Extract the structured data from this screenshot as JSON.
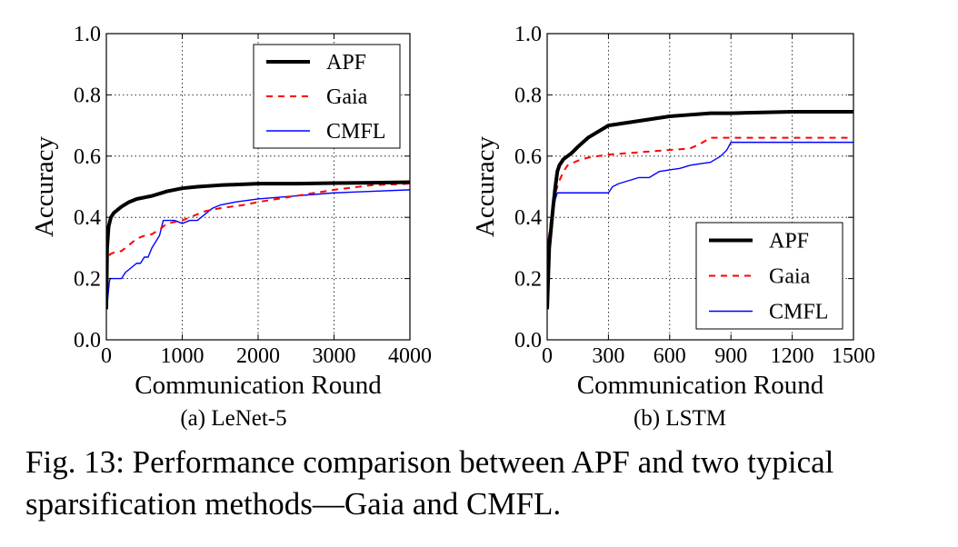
{
  "figure": {
    "caption": "Fig. 13: Performance comparison between APF and two typical sparsification methods—Gaia and CMFL."
  },
  "colors": {
    "APF": "#000000",
    "Gaia": "#ff0000",
    "CMFL": "#0000ff"
  },
  "chart_data": [
    {
      "type": "line",
      "panel_label": "(a) LeNet-5",
      "xlabel": "Communication Round",
      "ylabel": "Accuracy",
      "xlim": [
        0,
        4000
      ],
      "ylim": [
        0.0,
        1.0
      ],
      "xticks": [
        0,
        1000,
        2000,
        3000,
        4000
      ],
      "xtick_labels": [
        "0",
        "1000",
        "2000",
        "3000",
        "4000"
      ],
      "yticks": [
        0.0,
        0.2,
        0.4,
        0.6,
        0.8,
        1.0
      ],
      "ytick_labels": [
        "0.0",
        "0.2",
        "0.4",
        "0.6",
        "0.8",
        "1.0"
      ],
      "grid": true,
      "legend_position": "top-right",
      "series": [
        {
          "name": "APF",
          "style": "solid-thick",
          "x": [
            0,
            10,
            30,
            60,
            100,
            150,
            200,
            300,
            400,
            500,
            600,
            800,
            1000,
            1200,
            1500,
            2000,
            2500,
            3000,
            3500,
            4000
          ],
          "y": [
            0.1,
            0.3,
            0.37,
            0.4,
            0.415,
            0.425,
            0.435,
            0.45,
            0.46,
            0.465,
            0.47,
            0.485,
            0.495,
            0.5,
            0.505,
            0.51,
            0.51,
            0.512,
            0.513,
            0.515
          ]
        },
        {
          "name": "Gaia",
          "style": "dashed",
          "x": [
            0,
            20,
            50,
            100,
            200,
            250,
            300,
            400,
            500,
            600,
            700,
            800,
            900,
            1000,
            1200,
            1300,
            1500,
            1800,
            2000,
            2500,
            3000,
            3500,
            4000
          ],
          "y": [
            0.16,
            0.26,
            0.28,
            0.285,
            0.29,
            0.3,
            0.31,
            0.33,
            0.34,
            0.345,
            0.36,
            0.38,
            0.385,
            0.39,
            0.41,
            0.42,
            0.43,
            0.44,
            0.45,
            0.47,
            0.49,
            0.505,
            0.51
          ]
        },
        {
          "name": "CMFL",
          "style": "solid-thin",
          "x": [
            0,
            20,
            40,
            50,
            150,
            200,
            250,
            400,
            450,
            500,
            550,
            600,
            700,
            750,
            800,
            900,
            1000,
            1100,
            1200,
            1300,
            1400,
            1500,
            1700,
            2000,
            2500,
            3000,
            3500,
            4000
          ],
          "y": [
            0.1,
            0.14,
            0.19,
            0.2,
            0.2,
            0.2,
            0.22,
            0.25,
            0.25,
            0.27,
            0.27,
            0.3,
            0.34,
            0.39,
            0.39,
            0.39,
            0.38,
            0.39,
            0.39,
            0.41,
            0.43,
            0.44,
            0.45,
            0.46,
            0.47,
            0.48,
            0.485,
            0.49
          ]
        }
      ]
    },
    {
      "type": "line",
      "panel_label": "(b) LSTM",
      "xlabel": "Communication Round",
      "ylabel": "Accuracy",
      "xlim": [
        0,
        1500
      ],
      "ylim": [
        0.0,
        1.0
      ],
      "xticks": [
        0,
        300,
        600,
        900,
        1200,
        1500
      ],
      "xtick_labels": [
        "0",
        "300",
        "600",
        "900",
        "1200",
        "1500"
      ],
      "yticks": [
        0.0,
        0.2,
        0.4,
        0.6,
        0.8,
        1.0
      ],
      "ytick_labels": [
        "0.0",
        "0.2",
        "0.4",
        "0.6",
        "0.8",
        "1.0"
      ],
      "grid": true,
      "legend_position": "bottom-right",
      "series": [
        {
          "name": "APF",
          "style": "solid-thick",
          "x": [
            0,
            10,
            20,
            30,
            40,
            50,
            60,
            80,
            100,
            120,
            150,
            200,
            250,
            300,
            400,
            500,
            600,
            700,
            800,
            900,
            1000,
            1200,
            1500
          ],
          "y": [
            0.1,
            0.3,
            0.37,
            0.44,
            0.5,
            0.55,
            0.57,
            0.59,
            0.6,
            0.61,
            0.63,
            0.66,
            0.68,
            0.7,
            0.71,
            0.72,
            0.73,
            0.735,
            0.74,
            0.74,
            0.742,
            0.745,
            0.745
          ]
        },
        {
          "name": "Gaia",
          "style": "dashed",
          "x": [
            0,
            10,
            20,
            30,
            40,
            50,
            60,
            80,
            100,
            150,
            200,
            300,
            400,
            500,
            600,
            700,
            750,
            800,
            900,
            1200,
            1500
          ],
          "y": [
            0.1,
            0.34,
            0.4,
            0.44,
            0.48,
            0.5,
            0.52,
            0.55,
            0.57,
            0.585,
            0.595,
            0.605,
            0.61,
            0.615,
            0.62,
            0.625,
            0.64,
            0.66,
            0.66,
            0.66,
            0.66
          ]
        },
        {
          "name": "CMFL",
          "style": "solid-thin",
          "x": [
            0,
            10,
            20,
            30,
            40,
            50,
            60,
            300,
            320,
            350,
            400,
            450,
            500,
            550,
            600,
            650,
            700,
            750,
            800,
            850,
            880,
            900,
            1200,
            1500
          ],
          "y": [
            0.3,
            0.35,
            0.35,
            0.42,
            0.46,
            0.48,
            0.48,
            0.48,
            0.5,
            0.51,
            0.52,
            0.53,
            0.53,
            0.55,
            0.555,
            0.56,
            0.57,
            0.575,
            0.58,
            0.6,
            0.62,
            0.645,
            0.645,
            0.645
          ]
        }
      ]
    }
  ]
}
